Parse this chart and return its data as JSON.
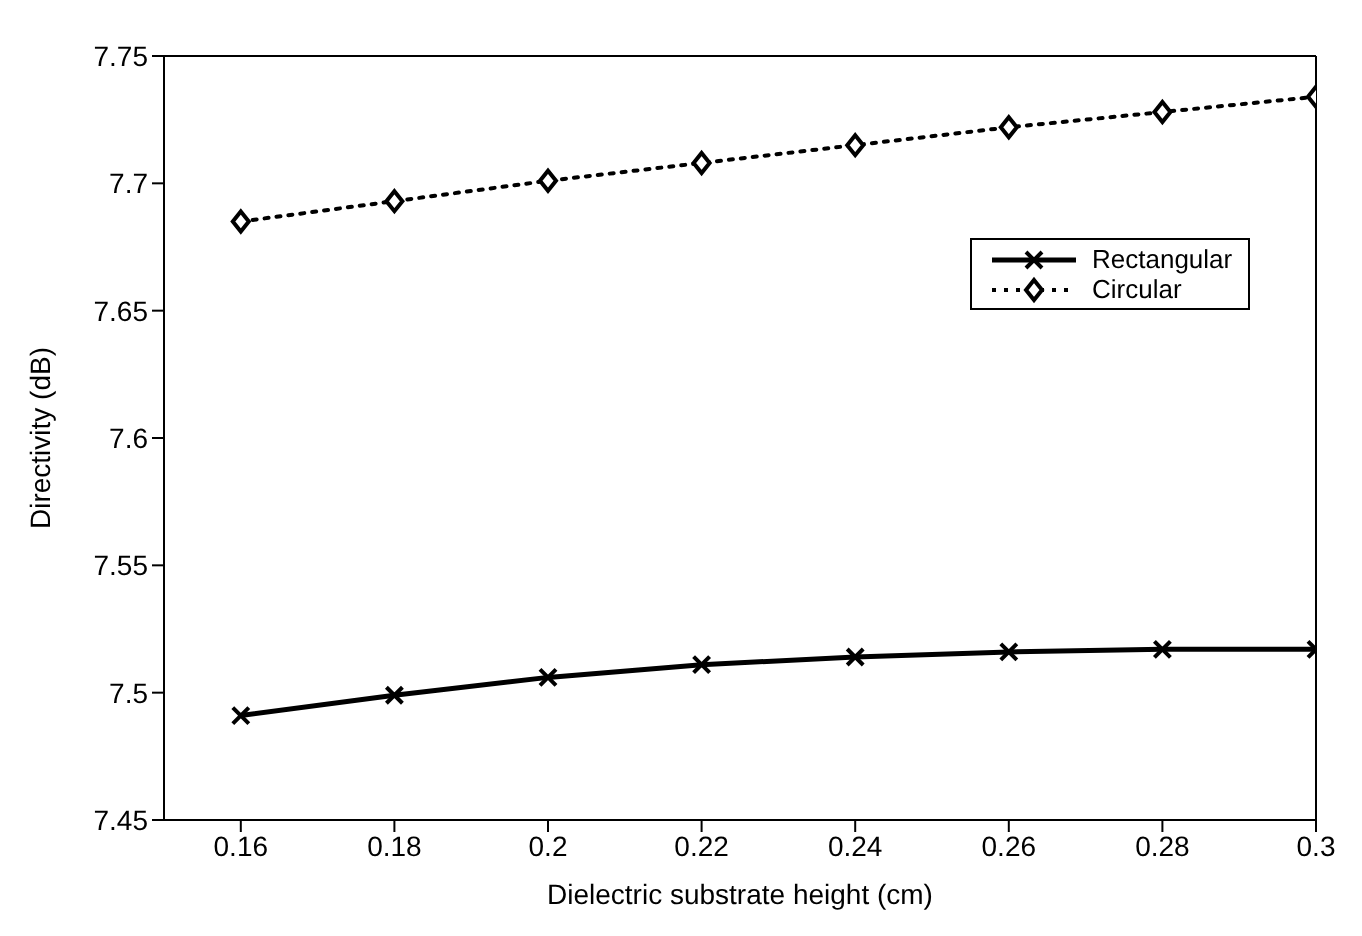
{
  "chart_data": {
    "type": "line",
    "xlabel": "Dielectric substrate height (cm)",
    "ylabel": "Directivity (dB)",
    "x": [
      0.16,
      0.18,
      0.2,
      0.22,
      0.24,
      0.26,
      0.28,
      0.3
    ],
    "series": [
      {
        "name": "Rectangular",
        "color": "#000000",
        "marker": "cross",
        "line_style": "solid",
        "values": [
          7.491,
          7.499,
          7.506,
          7.511,
          7.514,
          7.516,
          7.517,
          7.517
        ]
      },
      {
        "name": "Circular",
        "color": "#000000",
        "marker": "diamond",
        "line_style": "dotted",
        "values": [
          7.685,
          7.693,
          7.701,
          7.708,
          7.715,
          7.722,
          7.728,
          7.734
        ]
      }
    ],
    "xlim": [
      0.15,
      0.3
    ],
    "xticks": [
      0.16,
      0.18,
      0.2,
      0.22,
      0.24,
      0.26,
      0.28,
      0.3
    ],
    "ylim": [
      7.45,
      7.75
    ],
    "yticks": [
      7.45,
      7.5,
      7.55,
      7.6,
      7.65,
      7.7,
      7.75
    ],
    "grid": false,
    "legend": "top right"
  }
}
